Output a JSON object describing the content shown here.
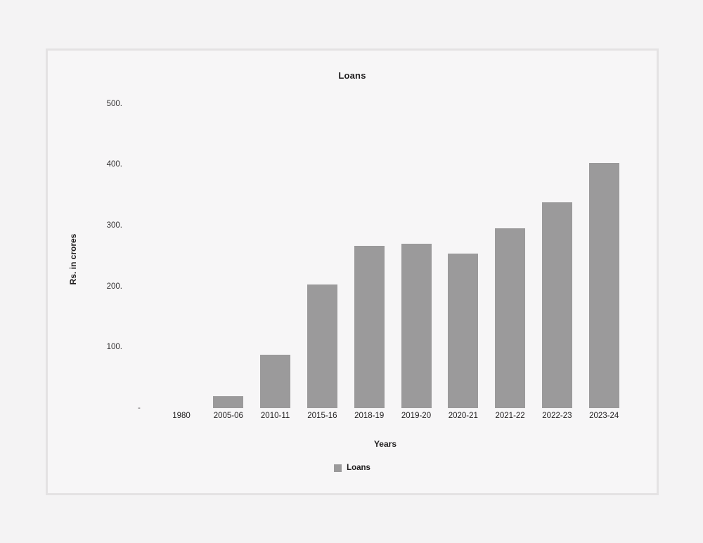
{
  "page": {
    "background": "#f4f3f4",
    "panel_background": "#f7f6f7",
    "panel_border": "#e4e2e3"
  },
  "chart_data": {
    "type": "bar",
    "title": "Loans",
    "xlabel": "Years",
    "ylabel": "Rs. in crores",
    "categories": [
      "1980",
      "2005-06",
      "2010-11",
      "2015-16",
      "2018-19",
      "2019-20",
      "2020-21",
      "2021-22",
      "2022-23",
      "2023-24"
    ],
    "values": [
      0,
      20,
      88,
      203,
      267,
      270,
      254,
      295,
      338,
      402
    ],
    "series_name": "Loans",
    "bar_color": "#9b9a9b",
    "ylim": [
      0,
      500
    ],
    "yticks": [
      {
        "label": "500.",
        "value": 500
      },
      {
        "label": "400.",
        "value": 400
      },
      {
        "label": "300.",
        "value": 300
      },
      {
        "label": "200.",
        "value": 200
      },
      {
        "label": "100.",
        "value": 100
      },
      {
        "label": "-",
        "value": 0
      }
    ],
    "grid": false,
    "legend": {
      "position": "bottom",
      "entries": [
        {
          "label": "Loans",
          "color": "#9b9a9b"
        }
      ]
    }
  }
}
